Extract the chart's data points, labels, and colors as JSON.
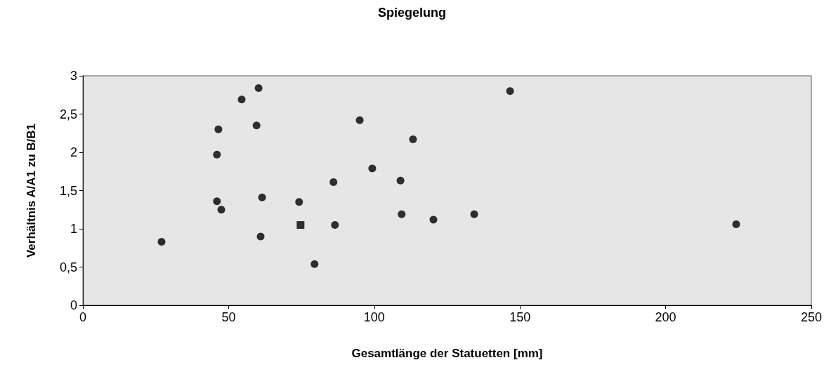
{
  "chart_data": {
    "type": "scatter",
    "title": "Spiegelung",
    "xlabel": "Gesamtlänge der Statuetten [mm]",
    "ylabel": "Verhältnis A/A1 zu B/B1",
    "xlim": [
      0,
      250
    ],
    "xticks": [
      0,
      50,
      100,
      150,
      200,
      250
    ],
    "ylim": [
      0,
      3
    ],
    "yticks": [
      0,
      {
        "value": 0.5,
        "label": "0,5"
      },
      1,
      {
        "value": 1.5,
        "label": "1,5"
      },
      2,
      {
        "value": 2.5,
        "label": "2,5"
      },
      3
    ],
    "grid": false,
    "series": [
      {
        "color": "#000000",
        "marker": "circle",
        "x": [
          27,
          54.5,
          60.3,
          59.6,
          46.5,
          46,
          46,
          47.5,
          61.5,
          61,
          74.2,
          79.5,
          86,
          86.5,
          95,
          99.3,
          109,
          109.4,
          113.3,
          120.3,
          134.3,
          146.6,
          224.2
        ],
        "values": [
          0.83,
          2.69,
          2.84,
          2.35,
          2.3,
          1.97,
          1.36,
          1.25,
          1.41,
          0.9,
          1.35,
          0.54,
          1.61,
          1.05,
          2.42,
          1.79,
          1.63,
          1.19,
          2.17,
          1.12,
          1.19,
          2.8,
          1.06
        ]
      },
      {
        "color": "#000000",
        "marker": "square",
        "x": [
          74.7
        ],
        "values": [
          1.05
        ]
      }
    ]
  }
}
